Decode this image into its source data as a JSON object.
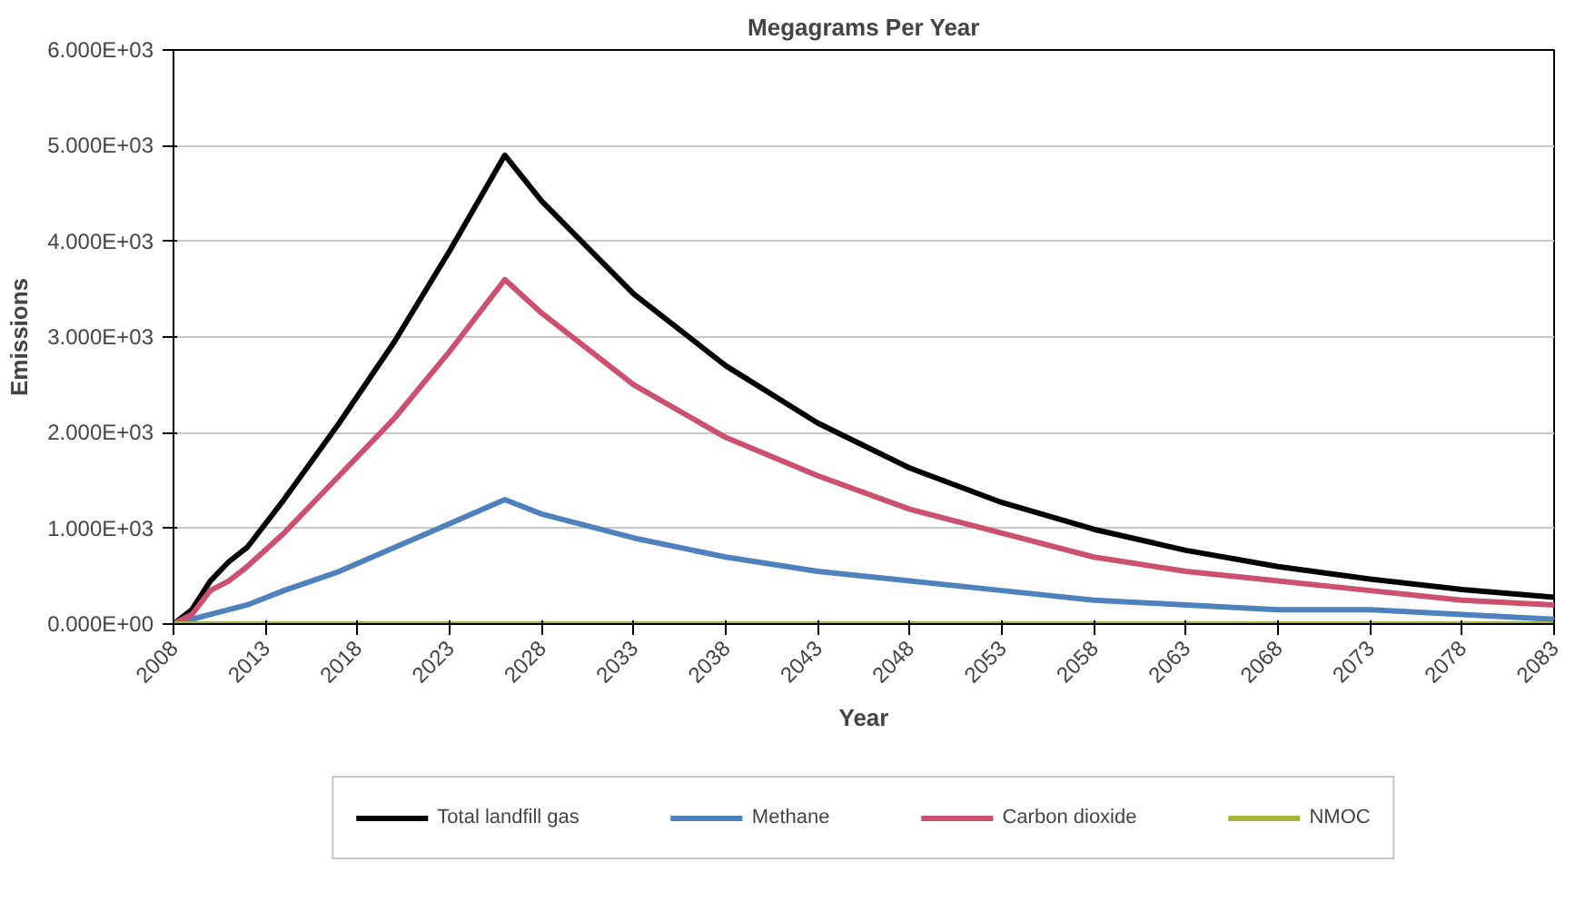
{
  "chart_data": {
    "type": "line",
    "title": "Megagrams Per Year",
    "xlabel": "Year",
    "ylabel": "Emissions",
    "x": [
      2008,
      2009,
      2010,
      2011,
      2012,
      2014,
      2017,
      2020,
      2023,
      2026,
      2028,
      2033,
      2038,
      2043,
      2048,
      2053,
      2058,
      2063,
      2068,
      2073,
      2078,
      2083
    ],
    "series": [
      {
        "name": "Total landfill gas",
        "color": "#000000",
        "values": [
          0,
          150,
          450,
          650,
          800,
          1300,
          2100,
          2950,
          3900,
          4900,
          4420,
          3450,
          2700,
          2100,
          1630,
          1270,
          990,
          770,
          600,
          470,
          360,
          280
        ]
      },
      {
        "name": "Methane",
        "color": "#4f81bd",
        "values": [
          0,
          50,
          100,
          150,
          200,
          350,
          550,
          800,
          1050,
          1300,
          1150,
          900,
          700,
          550,
          450,
          350,
          250,
          200,
          150,
          150,
          100,
          50
        ]
      },
      {
        "name": "Carbon dioxide",
        "color": "#cc5070",
        "values": [
          0,
          100,
          350,
          450,
          600,
          950,
          1550,
          2150,
          2850,
          3600,
          3250,
          2500,
          1950,
          1550,
          1200,
          950,
          700,
          550,
          450,
          350,
          250,
          200
        ]
      },
      {
        "name": "NMOC",
        "color": "#a4b43c",
        "values": [
          0,
          0,
          0,
          0,
          0,
          0,
          0,
          0,
          0,
          0,
          0,
          0,
          0,
          0,
          0,
          0,
          0,
          0,
          0,
          0,
          0,
          0
        ]
      }
    ],
    "xlim": [
      2008,
      2083
    ],
    "xticks": [
      2008,
      2013,
      2018,
      2023,
      2028,
      2033,
      2038,
      2043,
      2048,
      2053,
      2058,
      2063,
      2068,
      2073,
      2078,
      2083
    ],
    "ylim": [
      0,
      6000
    ],
    "yticks": [
      {
        "value": 0,
        "label": "0.000E+00"
      },
      {
        "value": 1000,
        "label": "1.000E+03"
      },
      {
        "value": 2000,
        "label": "2.000E+03"
      },
      {
        "value": 3000,
        "label": "3.000E+03"
      },
      {
        "value": 4000,
        "label": "4.000E+03"
      },
      {
        "value": 5000,
        "label": "5.000E+03"
      },
      {
        "value": 6000,
        "label": "6.000E+03"
      }
    ],
    "grid": "y",
    "legend": "bottom",
    "marker": "none",
    "line_style": "solid"
  }
}
